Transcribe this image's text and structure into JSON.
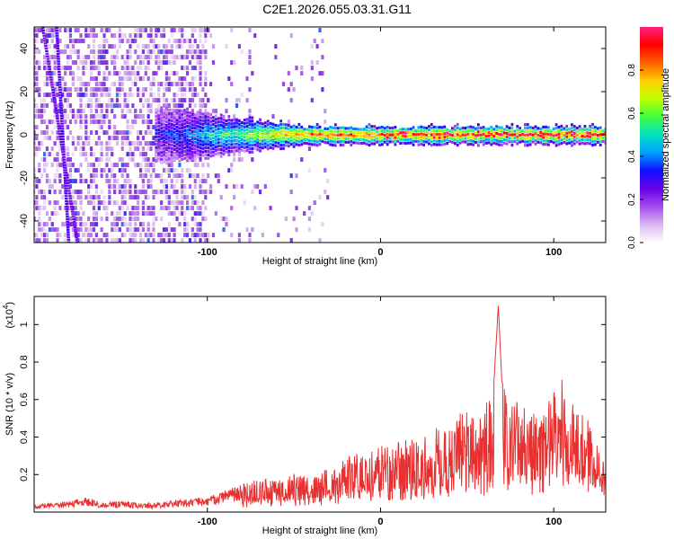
{
  "title": "C2E1.2026.055.03.31.G11",
  "chart_data": [
    {
      "type": "heatmap",
      "title": "C2E1.2026.055.03.31.G11",
      "xlabel": "Height of straight line (km)",
      "ylabel": "Frequency (Hz)",
      "xlim": [
        -200,
        130
      ],
      "ylim": [
        -50,
        50
      ],
      "xticks": [
        -100,
        0,
        100
      ],
      "xtick_labels": [
        "-100",
        "0",
        "100"
      ],
      "yticks": [
        -40,
        -20,
        0,
        20,
        40
      ],
      "ytick_labels": [
        "-40",
        "-20",
        "0",
        "20",
        "40"
      ],
      "colorbar": {
        "label": "Normalized spectral amplitude",
        "range": [
          0,
          1
        ],
        "ticks": [
          0.0,
          0.2,
          0.4,
          0.6,
          0.8
        ],
        "tick_labels": [
          "0.0",
          "0.2",
          "0.4",
          "0.6",
          "0.8"
        ],
        "colormap": [
          "#ffffff",
          "#d9b8f0",
          "#a44cf0",
          "#6a00e8",
          "#1010ff",
          "#00a0ff",
          "#00e0c0",
          "#40ff40",
          "#c0ff00",
          "#ffd000",
          "#ff6000",
          "#ff0000",
          "#ff2080"
        ]
      },
      "features": {
        "noise_region_x": [
          -200,
          -100
        ],
        "signal_band_start_x": -130,
        "signal_band_center_freq": 0,
        "vertical_streak_left": {
          "x_at_top": -187,
          "x_at_bottom": -180
        },
        "vertical_streak_right": {
          "x_at_top": -195,
          "x_at_bottom": -175
        }
      }
    },
    {
      "type": "line",
      "xlabel": "Height of straight line (km)",
      "ylabel": "SNR (10 * v/v)",
      "yscale_label": "(x10",
      "yscale_exponent": "4",
      "xlim": [
        -200,
        130
      ],
      "ylim": [
        0,
        1.15
      ],
      "xticks": [
        -100,
        0,
        100
      ],
      "xtick_labels": [
        "-100",
        "0",
        "100"
      ],
      "yticks": [
        0.2,
        0.4,
        0.6,
        0.8,
        1
      ],
      "ytick_labels": [
        "0.2",
        "0.4",
        "0.6",
        "0.8",
        "1"
      ],
      "color": "#e83030",
      "series": [
        {
          "x": [
            -200,
            -190,
            -180,
            -170,
            -160,
            -150,
            -140,
            -130,
            -120,
            -110,
            -100,
            -90,
            -80,
            -70,
            -60,
            -50,
            -40,
            -30,
            -20,
            -10,
            0,
            10,
            20,
            30,
            40,
            45,
            50,
            55,
            60,
            65,
            68,
            70,
            75,
            80,
            85,
            90,
            95,
            100,
            105,
            110,
            115,
            120,
            125,
            130
          ],
          "values": [
            0.04,
            0.05,
            0.06,
            0.08,
            0.05,
            0.06,
            0.05,
            0.05,
            0.06,
            0.07,
            0.08,
            0.12,
            0.15,
            0.18,
            0.17,
            0.2,
            0.22,
            0.25,
            0.3,
            0.32,
            0.35,
            0.38,
            0.4,
            0.45,
            0.48,
            0.52,
            0.55,
            0.5,
            0.58,
            0.62,
            1.1,
            0.7,
            0.55,
            0.62,
            0.52,
            0.55,
            0.52,
            0.72,
            0.75,
            0.62,
            0.6,
            0.5,
            0.4,
            0.25
          ]
        }
      ]
    }
  ]
}
